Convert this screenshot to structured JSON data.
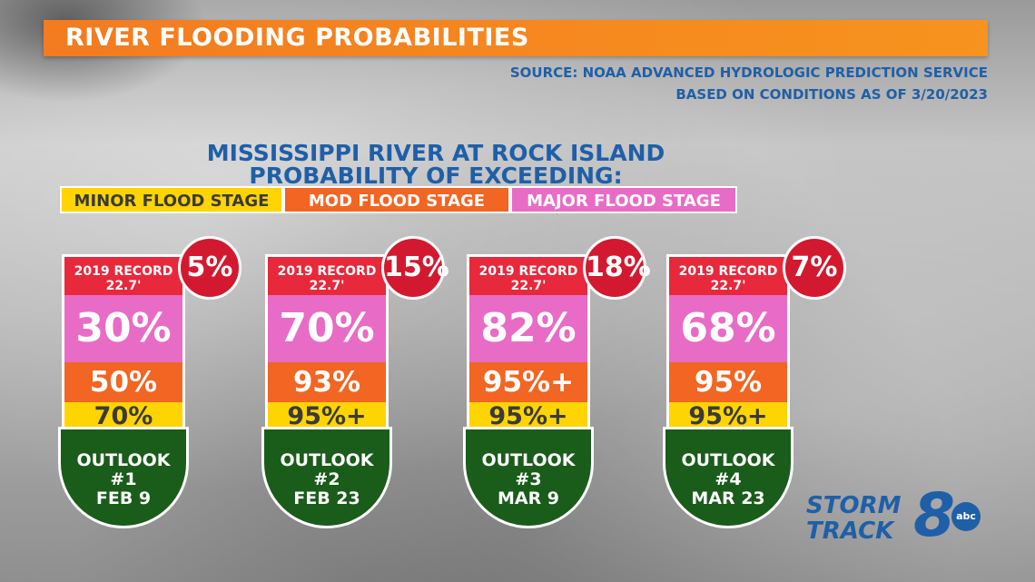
{
  "title": "RIVER FLOODING PROBABILITIES",
  "source_line1": "SOURCE: NOAA ADVANCED HYDROLOGIC PREDICTION SERVICE",
  "source_line2": "BASED ON CONDITIONS AS OF 3/20/2023",
  "subtitle_line1": "MISSISSIPPI RIVER AT ROCK ISLAND",
  "subtitle_line2": "PROBABILITY OF EXCEEDING:",
  "legend": {
    "minor": "MINOR FLOOD STAGE",
    "mod": "MOD FLOOD STAGE",
    "major": "MAJOR FLOOD STAGE"
  },
  "colors": {
    "title_bar": "#f47b20",
    "text_blue": "#1f5fa8",
    "record": "#e8283b",
    "major": "#e86cc6",
    "mod": "#f26522",
    "minor": "#ffd400",
    "outlook": "#1a5c1a"
  },
  "outlooks": [
    {
      "record_line1": "2019 RECORD",
      "record_line2": "22.7'",
      "record_pct": "5%",
      "major": "30%",
      "mod": "50%",
      "minor": "70%",
      "label1": "OUTLOOK #1",
      "label2": "FEB 9"
    },
    {
      "record_line1": "2019 RECORD",
      "record_line2": "22.7'",
      "record_pct": "15%",
      "major": "70%",
      "mod": "93%",
      "minor": "95%+",
      "label1": "OUTLOOK #2",
      "label2": "FEB 23"
    },
    {
      "record_line1": "2019 RECORD",
      "record_line2": "22.7'",
      "record_pct": "18%",
      "major": "82%",
      "mod": "95%+",
      "minor": "95%+",
      "label1": "OUTLOOK #3",
      "label2": "MAR 9"
    },
    {
      "record_line1": "2019 RECORD",
      "record_line2": "22.7'",
      "record_pct": "7%",
      "major": "68%",
      "mod": "95%",
      "minor": "95%+",
      "label1": "OUTLOOK #4",
      "label2": "MAR 23"
    }
  ],
  "logo": {
    "line1": "STORM",
    "line2": "TRACK",
    "number": "8",
    "network": "abc"
  }
}
